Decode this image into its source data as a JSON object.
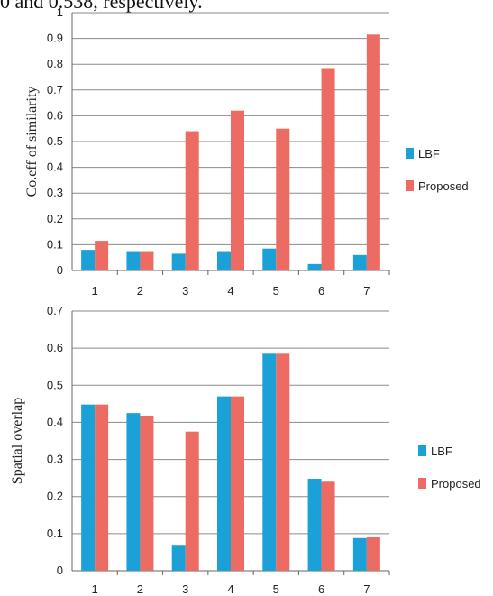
{
  "header_fragment": "0 and 0.538, respectively.",
  "colors": {
    "LBF": "#1ba1d8",
    "Proposed": "#ec6b62",
    "grid": "#8a8a8a",
    "axis": "#666666"
  },
  "chart_data": [
    {
      "type": "bar",
      "title": "",
      "xlabel": "",
      "ylabel": "Co.eff of similarity",
      "ylim": [
        0,
        1
      ],
      "yticks": [
        "0",
        "0.1",
        "0.2",
        "0.3",
        "0.4",
        "0.5",
        "0.6",
        "0.7",
        "0.8",
        "0.9",
        "1"
      ],
      "grid": true,
      "legend_position": "right",
      "categories": [
        "1",
        "2",
        "3",
        "4",
        "5",
        "6",
        "7"
      ],
      "series": [
        {
          "name": "LBF",
          "values": [
            0.08,
            0.075,
            0.065,
            0.075,
            0.085,
            0.025,
            0.06
          ]
        },
        {
          "name": "Proposed",
          "values": [
            0.115,
            0.075,
            0.54,
            0.62,
            0.55,
            0.785,
            0.915
          ]
        }
      ]
    },
    {
      "type": "bar",
      "title": "",
      "xlabel": "",
      "ylabel": "Spatial overlap",
      "ylim": [
        0,
        0.7
      ],
      "yticks": [
        "0",
        "0.1",
        "0.2",
        "0.3",
        "0.4",
        "0.5",
        "0.6",
        "0.7"
      ],
      "grid": true,
      "legend_position": "right",
      "categories": [
        "1",
        "2",
        "3",
        "4",
        "5",
        "6",
        "7"
      ],
      "series": [
        {
          "name": "LBF",
          "values": [
            0.448,
            0.425,
            0.07,
            0.47,
            0.585,
            0.248,
            0.088
          ]
        },
        {
          "name": "Proposed",
          "values": [
            0.448,
            0.418,
            0.375,
            0.47,
            0.585,
            0.24,
            0.09
          ]
        }
      ]
    }
  ]
}
